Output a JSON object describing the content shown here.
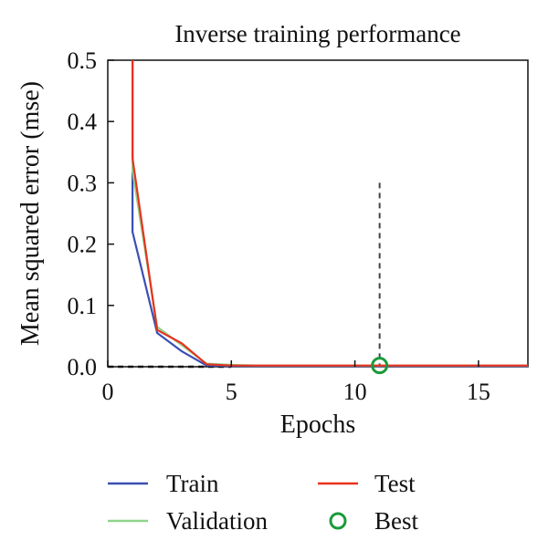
{
  "chart_data": {
    "type": "line",
    "title": "Inverse training performance",
    "xlabel": "Epochs",
    "ylabel": "Mean squared error (mse)",
    "xlim": [
      0,
      17
    ],
    "ylim": [
      0,
      0.5
    ],
    "x_ticks": [
      0,
      5,
      10,
      15
    ],
    "y_ticks": [
      0.0,
      0.1,
      0.2,
      0.3,
      0.4,
      0.5
    ],
    "x_tick_labels": [
      "0",
      "5",
      "10",
      "15"
    ],
    "y_tick_labels": [
      "0.0",
      "0.1",
      "0.2",
      "0.3",
      "0.4",
      "0.5"
    ],
    "grid": false,
    "legend_position": "bottom",
    "series": [
      {
        "name": "Train",
        "color": "#3a4fb4",
        "x": [
          1,
          1,
          2,
          3,
          4,
          5,
          6,
          8,
          10,
          11,
          12,
          14,
          17
        ],
        "y": [
          0.5,
          0.22,
          0.055,
          0.025,
          0.002,
          0.001,
          0.001,
          0.001,
          0.001,
          0.001,
          0.001,
          0.001,
          0.001
        ]
      },
      {
        "name": "Validation",
        "color": "#8fd48a",
        "x": [
          1,
          1,
          2,
          3,
          4,
          5,
          6,
          8,
          10,
          11,
          12,
          14,
          17
        ],
        "y": [
          0.5,
          0.32,
          0.065,
          0.035,
          0.005,
          0.003,
          0.002,
          0.002,
          0.002,
          0.002,
          0.002,
          0.002,
          0.002
        ]
      },
      {
        "name": "Test",
        "color": "#e8321e",
        "x": [
          1,
          1,
          2,
          3,
          4,
          5,
          6,
          8,
          10,
          11,
          12,
          14,
          17
        ],
        "y": [
          0.5,
          0.34,
          0.06,
          0.038,
          0.004,
          0.002,
          0.002,
          0.002,
          0.002,
          0.002,
          0.002,
          0.002,
          0.002
        ]
      }
    ],
    "best": {
      "name": "Best",
      "color": "#1a9a3a",
      "x": 11,
      "y": 0.002
    },
    "goal_line": {
      "y": 0.0,
      "x_end": 5,
      "color": "#111111"
    },
    "best_marker_line": {
      "x": 11,
      "y_top": 0.3,
      "color": "#444444"
    }
  }
}
